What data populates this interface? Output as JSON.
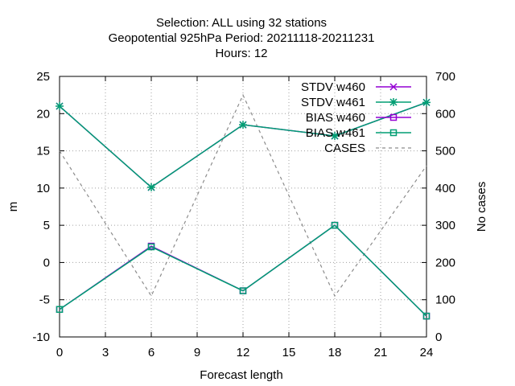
{
  "chart_data": {
    "type": "line",
    "title_lines": [
      "Selection: ALL using    32 stations",
      "Geopotential 925hPa   Period: 20211118-20211231",
      "Hours:  12"
    ],
    "xlabel": "Forecast length",
    "ylabel": "m",
    "y2label": "No cases",
    "x": [
      0,
      6,
      12,
      18,
      24
    ],
    "xticks": [
      0,
      3,
      6,
      9,
      12,
      15,
      18,
      21,
      24
    ],
    "xlim": [
      0,
      24
    ],
    "ylim": [
      -10,
      25
    ],
    "yticks": [
      -10,
      -5,
      0,
      5,
      10,
      15,
      20,
      25
    ],
    "y2lim": [
      0,
      700
    ],
    "y2ticks": [
      0,
      100,
      200,
      300,
      400,
      500,
      600,
      700
    ],
    "grid": true,
    "legend_position": "top-right",
    "series": [
      {
        "name": "STDV w460",
        "axis": "y",
        "color": "#9400d3",
        "marker": "x",
        "dash": "none",
        "values": [
          21.0,
          10.1,
          18.5,
          17.0,
          21.5
        ]
      },
      {
        "name": "STDV w461",
        "axis": "y",
        "color": "#009e73",
        "marker": "star",
        "dash": "none",
        "values": [
          21.0,
          10.1,
          18.5,
          17.0,
          21.5
        ]
      },
      {
        "name": "BIAS w460",
        "axis": "y",
        "color": "#9400d3",
        "marker": "square",
        "dash": "none",
        "values": [
          -6.3,
          2.2,
          -3.8,
          5.0,
          -7.2
        ]
      },
      {
        "name": "BIAS w461",
        "axis": "y",
        "color": "#009e73",
        "marker": "square",
        "dash": "none",
        "values": [
          -6.3,
          2.1,
          -3.8,
          5.0,
          -7.2
        ]
      },
      {
        "name": "CASES",
        "axis": "y2",
        "color": "#8c8c8c",
        "marker": "none",
        "dash": "4,4",
        "values": [
          500,
          110,
          650,
          110,
          460
        ]
      }
    ]
  }
}
